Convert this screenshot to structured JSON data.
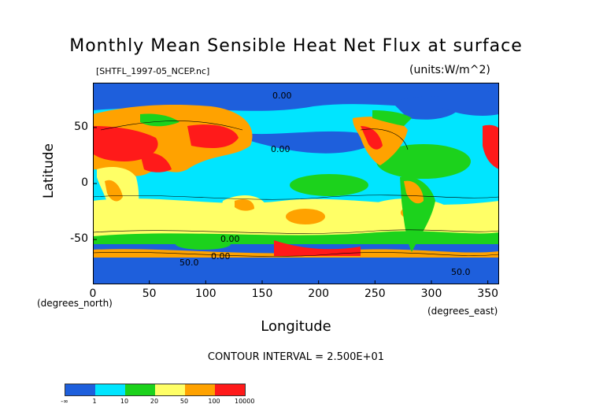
{
  "title": "Monthly Mean Sensible Heat Net Flux at surface",
  "file_label": "[SHTFL_1997-05_NCEP.nc]",
  "units_label": "(units:W/m^2)",
  "x_axis": {
    "label": "Longitude",
    "unit_label": "(degrees_east)",
    "ticks": [
      "0",
      "50",
      "100",
      "150",
      "200",
      "250",
      "300",
      "350"
    ]
  },
  "y_axis": {
    "label": "Latitude",
    "unit_label": "(degrees_north)",
    "ticks": [
      "50",
      "0",
      "-50"
    ]
  },
  "contour_interval": "CONTOUR INTERVAL = 2.500E+01",
  "contour_labels": [
    "0.00",
    "0.00",
    "0.00",
    "0.00",
    "50.0",
    "50.0"
  ],
  "colorbar": {
    "colors": [
      "#1e5fdc",
      "#00e5ff",
      "#1cd21c",
      "#ffff66",
      "#ffa200",
      "#ff1a1a"
    ],
    "labels": [
      "-∞",
      "1",
      "10",
      "20",
      "50",
      "100",
      "10000"
    ]
  },
  "chart_data": {
    "type": "heatmap",
    "title": "Monthly Mean Sensible Heat Net Flux at surface",
    "xlabel": "Longitude",
    "ylabel": "Latitude",
    "xlim": [
      0,
      360
    ],
    "ylim": [
      -90,
      90
    ],
    "x_ticks": [
      0,
      50,
      100,
      150,
      200,
      250,
      300,
      350
    ],
    "y_ticks": [
      -50,
      0,
      50
    ],
    "color_levels": [
      1,
      10,
      20,
      50,
      100,
      10000
    ]
  }
}
